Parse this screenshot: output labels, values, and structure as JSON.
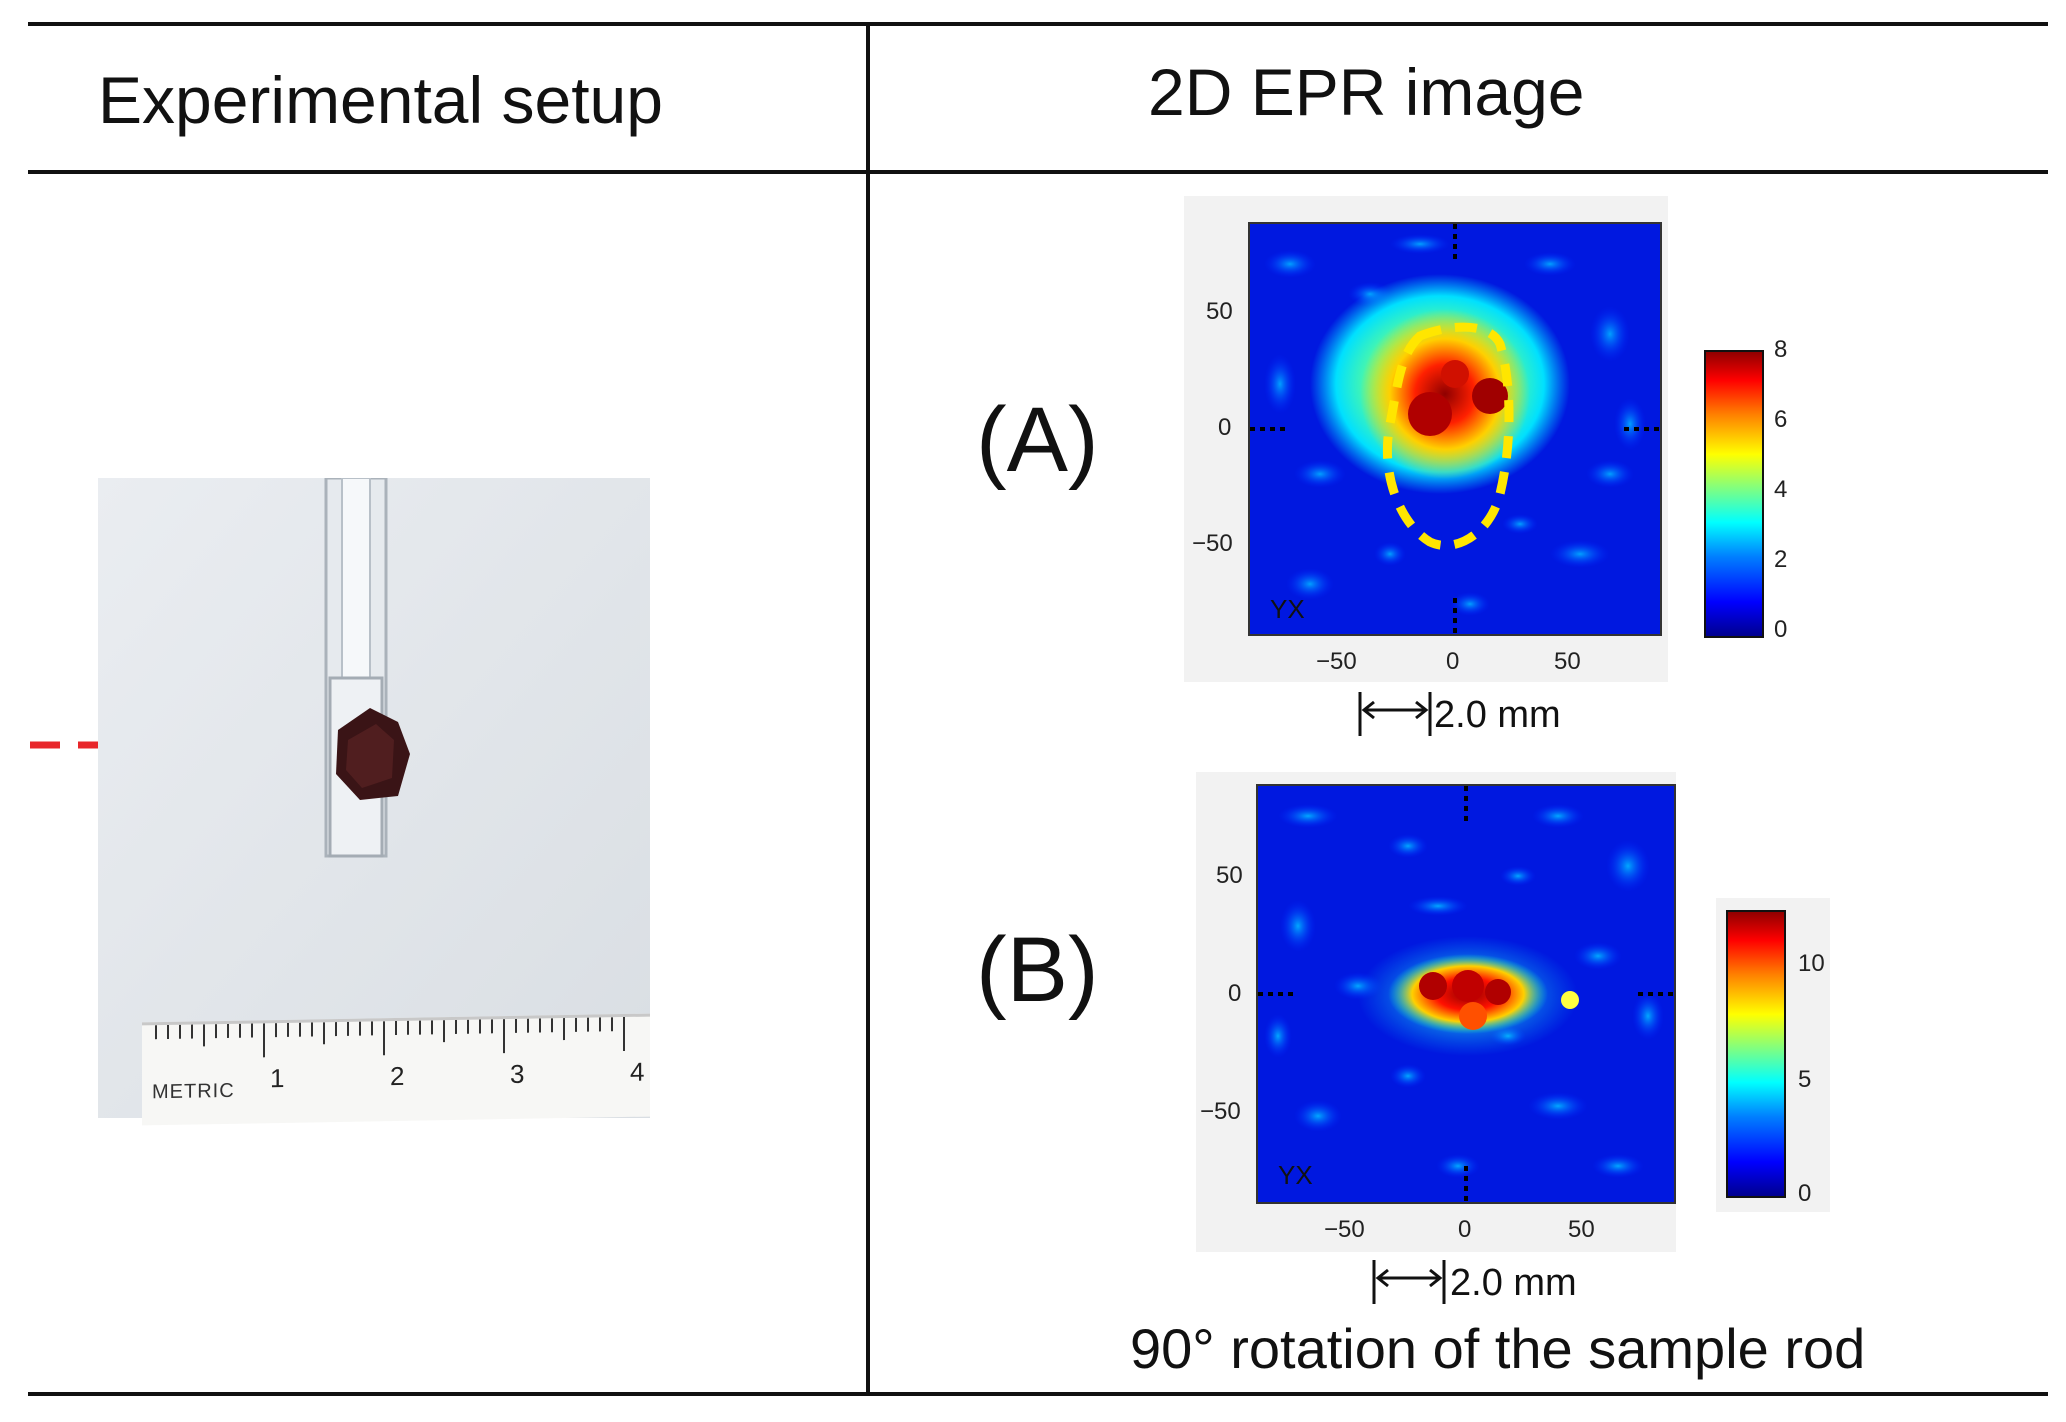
{
  "headers": {
    "left": "Experimental setup",
    "right": "2D EPR image"
  },
  "photo": {
    "ruler": {
      "brand": "METRIC",
      "numbers": [
        "1",
        "2",
        "3",
        "4"
      ]
    },
    "arrow_color": "#e8262a",
    "line_color": "#2a8fd6"
  },
  "panels": [
    {
      "label": "(A)",
      "yticks": [
        "50",
        "0",
        "−50"
      ],
      "xticks": [
        "−50",
        "0",
        "50"
      ],
      "corner": "YX",
      "colorbar_ticks": [
        "8",
        "6",
        "4",
        "2",
        "0"
      ],
      "scale": "2.0 mm",
      "outline_color": "#ffe600"
    },
    {
      "label": "(B)",
      "yticks": [
        "50",
        "0",
        "−50"
      ],
      "xticks": [
        "−50",
        "0",
        "50"
      ],
      "corner": "YX",
      "colorbar_ticks": [
        "10",
        "5",
        "0"
      ],
      "scale": "2.0 mm"
    }
  ],
  "caption": "90° rotation of the sample rod",
  "colormap": [
    "#00008f",
    "#0000ff",
    "#0080ff",
    "#00ffff",
    "#80ff80",
    "#ffff00",
    "#ff8000",
    "#ff0000",
    "#800000"
  ]
}
